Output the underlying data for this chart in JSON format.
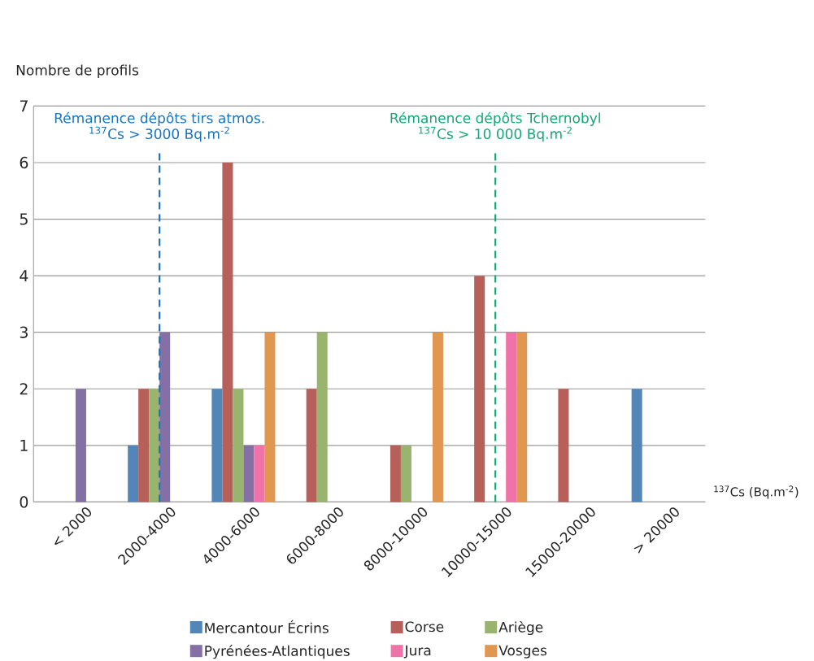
{
  "chart_data": {
    "type": "bar",
    "ylabel": "Nombre de profils",
    "xlabel": "$^{137}$Cs (Bq.m$^{-2}$)",
    "categories": [
      "< 2000",
      "2000-4000",
      "4000-6000",
      "6000-8000",
      "8000-10000",
      "10000-15000",
      "15000-20000",
      "> 20000"
    ],
    "series": [
      {
        "name": "Mercantour Écrins",
        "color": "#5285b8",
        "values": [
          null,
          1,
          2,
          null,
          null,
          null,
          null,
          2
        ]
      },
      {
        "name": "Corse",
        "color": "#b7605a",
        "values": [
          null,
          2,
          6,
          2,
          1,
          4,
          2,
          null
        ]
      },
      {
        "name": "Ariège",
        "color": "#98b46f",
        "values": [
          null,
          2,
          2,
          3,
          1,
          null,
          null,
          null
        ]
      },
      {
        "name": "Pyrénées-Atlantiques",
        "color": "#8470a4",
        "values": [
          2,
          3,
          1,
          null,
          null,
          null,
          null,
          null
        ]
      },
      {
        "name": "Jura",
        "color": "#ef72a8",
        "values": [
          null,
          null,
          1,
          null,
          null,
          3,
          null,
          null
        ]
      },
      {
        "name": "Vosges",
        "color": "#e09752",
        "values": [
          null,
          null,
          3,
          null,
          3,
          3,
          null,
          null
        ]
      }
    ],
    "ylim": [
      0,
      7
    ],
    "yticks": [
      0,
      1,
      2,
      3,
      4,
      5,
      6,
      7
    ],
    "grid": "y",
    "legend": "bottom",
    "ref_lines": [
      {
        "axis": "x",
        "value": "2000-4000",
        "label": "Rémanence dépôts tirs atmos.",
        "color": "#1b75bc",
        "line_style": "dashed"
      },
      {
        "axis": "x",
        "value": "10000-15000",
        "label": "Rémanence dépôts Tchernobyl",
        "color": "#16a673",
        "line_style": "dashed"
      }
    ],
    "annotations": [
      "$^{137}$Cs > 3000 Bq.m$^{-2}$",
      "$^{137}$Cs > 10 000 Bq.m$^{-2}$"
    ]
  }
}
